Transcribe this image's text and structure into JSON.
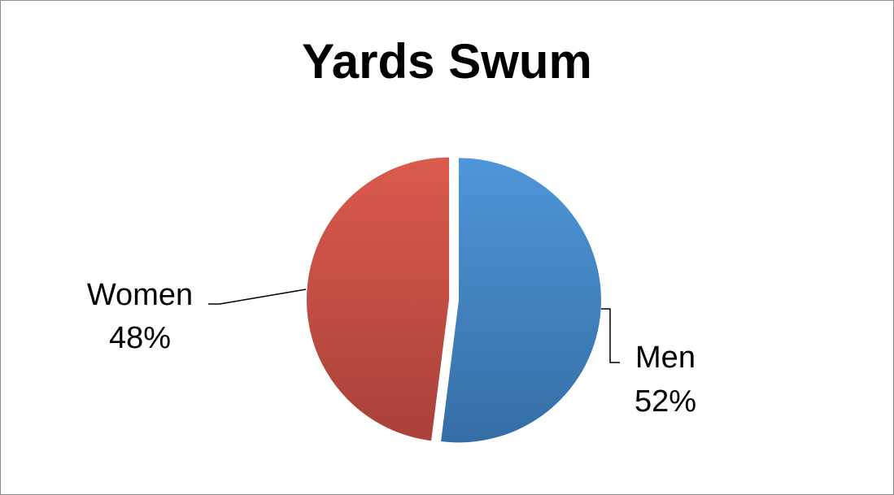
{
  "chart_data": {
    "type": "pie",
    "title": "Yards Swum",
    "categories": [
      "Men",
      "Women"
    ],
    "values": [
      52,
      48
    ],
    "series": [
      {
        "name": "",
        "values": [
          52,
          48
        ]
      }
    ],
    "slices": [
      {
        "name": "Men",
        "value": 52,
        "label_pct": "52%",
        "color_top": "#4f96d8",
        "color_bottom": "#356ea6"
      },
      {
        "name": "Women",
        "value": 48,
        "label_pct": "48%",
        "color_top": "#db5a4d",
        "color_bottom": "#a9413a"
      }
    ],
    "legend": "none",
    "data_labels": "category name and percentage",
    "exploded": true
  }
}
